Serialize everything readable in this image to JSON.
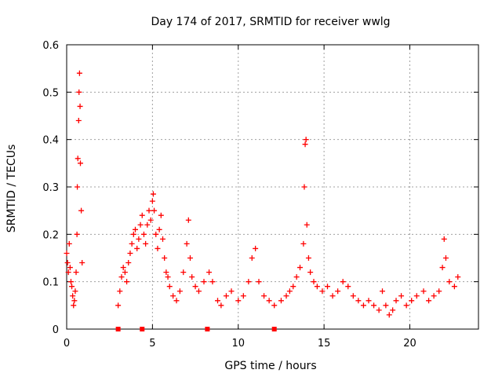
{
  "chart_data": {
    "type": "scatter",
    "title": "Day 174 of 2017, SRMTID for receiver wwlg",
    "xlabel": "GPS time / hours",
    "ylabel": "SRMTID / TECUs",
    "xlim": [
      0,
      24
    ],
    "ylim": [
      0,
      0.6
    ],
    "xticks": [
      0,
      5,
      10,
      15,
      20
    ],
    "yticks": [
      0,
      0.1,
      0.2,
      0.3,
      0.4,
      0.5,
      0.6
    ],
    "grid": true,
    "marker": "+",
    "color": "#ff0000",
    "series": [
      {
        "name": "SRMTID",
        "points": [
          [
            0.0,
            0.16
          ],
          [
            0.05,
            0.14
          ],
          [
            0.1,
            0.12
          ],
          [
            0.15,
            0.18
          ],
          [
            0.2,
            0.13
          ],
          [
            0.25,
            0.1
          ],
          [
            0.3,
            0.09
          ],
          [
            0.35,
            0.07
          ],
          [
            0.4,
            0.05
          ],
          [
            0.45,
            0.06
          ],
          [
            0.5,
            0.08
          ],
          [
            0.55,
            0.12
          ],
          [
            0.6,
            0.2
          ],
          [
            0.62,
            0.3
          ],
          [
            0.65,
            0.36
          ],
          [
            0.7,
            0.44
          ],
          [
            0.72,
            0.5
          ],
          [
            0.75,
            0.54
          ],
          [
            0.78,
            0.47
          ],
          [
            0.8,
            0.35
          ],
          [
            0.85,
            0.25
          ],
          [
            0.9,
            0.14
          ],
          [
            3.0,
            0.05
          ],
          [
            3.1,
            0.08
          ],
          [
            3.2,
            0.11
          ],
          [
            3.3,
            0.13
          ],
          [
            3.4,
            0.12
          ],
          [
            3.5,
            0.1
          ],
          [
            3.6,
            0.14
          ],
          [
            3.7,
            0.16
          ],
          [
            3.8,
            0.18
          ],
          [
            3.9,
            0.2
          ],
          [
            4.0,
            0.21
          ],
          [
            4.1,
            0.17
          ],
          [
            4.2,
            0.19
          ],
          [
            4.3,
            0.22
          ],
          [
            4.4,
            0.24
          ],
          [
            4.5,
            0.2
          ],
          [
            4.6,
            0.18
          ],
          [
            4.7,
            0.22
          ],
          [
            4.8,
            0.25
          ],
          [
            4.9,
            0.23
          ],
          [
            5.0,
            0.27
          ],
          [
            5.05,
            0.285
          ],
          [
            5.1,
            0.25
          ],
          [
            5.2,
            0.2
          ],
          [
            5.3,
            0.17
          ],
          [
            5.4,
            0.21
          ],
          [
            5.5,
            0.24
          ],
          [
            5.6,
            0.19
          ],
          [
            5.7,
            0.15
          ],
          [
            5.8,
            0.12
          ],
          [
            5.9,
            0.11
          ],
          [
            6.0,
            0.09
          ],
          [
            6.2,
            0.07
          ],
          [
            6.4,
            0.06
          ],
          [
            6.6,
            0.08
          ],
          [
            6.8,
            0.12
          ],
          [
            7.0,
            0.18
          ],
          [
            7.1,
            0.23
          ],
          [
            7.2,
            0.15
          ],
          [
            7.3,
            0.11
          ],
          [
            7.5,
            0.09
          ],
          [
            7.7,
            0.08
          ],
          [
            8.0,
            0.1
          ],
          [
            8.3,
            0.12
          ],
          [
            8.5,
            0.1
          ],
          [
            8.8,
            0.06
          ],
          [
            9.0,
            0.05
          ],
          [
            9.3,
            0.07
          ],
          [
            9.6,
            0.08
          ],
          [
            10.0,
            0.06
          ],
          [
            10.3,
            0.07
          ],
          [
            10.6,
            0.1
          ],
          [
            10.8,
            0.15
          ],
          [
            11.0,
            0.17
          ],
          [
            11.2,
            0.1
          ],
          [
            11.5,
            0.07
          ],
          [
            11.8,
            0.06
          ],
          [
            12.1,
            0.05
          ],
          [
            12.5,
            0.06
          ],
          [
            12.8,
            0.07
          ],
          [
            13.0,
            0.08
          ],
          [
            13.2,
            0.09
          ],
          [
            13.4,
            0.11
          ],
          [
            13.6,
            0.13
          ],
          [
            13.8,
            0.18
          ],
          [
            13.85,
            0.3
          ],
          [
            13.9,
            0.39
          ],
          [
            13.95,
            0.4
          ],
          [
            14.0,
            0.22
          ],
          [
            14.1,
            0.15
          ],
          [
            14.2,
            0.12
          ],
          [
            14.4,
            0.1
          ],
          [
            14.6,
            0.09
          ],
          [
            14.9,
            0.08
          ],
          [
            15.2,
            0.09
          ],
          [
            15.5,
            0.07
          ],
          [
            15.8,
            0.08
          ],
          [
            16.1,
            0.1
          ],
          [
            16.4,
            0.09
          ],
          [
            16.7,
            0.07
          ],
          [
            17.0,
            0.06
          ],
          [
            17.3,
            0.05
          ],
          [
            17.6,
            0.06
          ],
          [
            17.9,
            0.05
          ],
          [
            18.2,
            0.04
          ],
          [
            18.4,
            0.08
          ],
          [
            18.6,
            0.05
          ],
          [
            18.8,
            0.03
          ],
          [
            19.0,
            0.04
          ],
          [
            19.2,
            0.06
          ],
          [
            19.5,
            0.07
          ],
          [
            19.8,
            0.05
          ],
          [
            20.1,
            0.06
          ],
          [
            20.4,
            0.07
          ],
          [
            20.8,
            0.08
          ],
          [
            21.1,
            0.06
          ],
          [
            21.4,
            0.07
          ],
          [
            21.7,
            0.08
          ],
          [
            21.9,
            0.13
          ],
          [
            22.0,
            0.19
          ],
          [
            22.1,
            0.15
          ],
          [
            22.3,
            0.1
          ],
          [
            22.6,
            0.09
          ],
          [
            22.8,
            0.11
          ]
        ]
      }
    ],
    "gaps": [
      3.0,
      4.4,
      8.2,
      12.1
    ]
  }
}
